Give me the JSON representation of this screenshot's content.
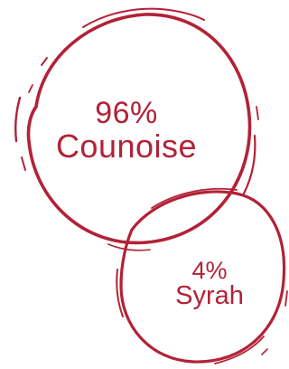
{
  "accent_color": "#b22237",
  "grapes": [
    {
      "percent": "96%",
      "name": "Counoise"
    },
    {
      "percent": "4%",
      "name": "Syrah"
    }
  ]
}
